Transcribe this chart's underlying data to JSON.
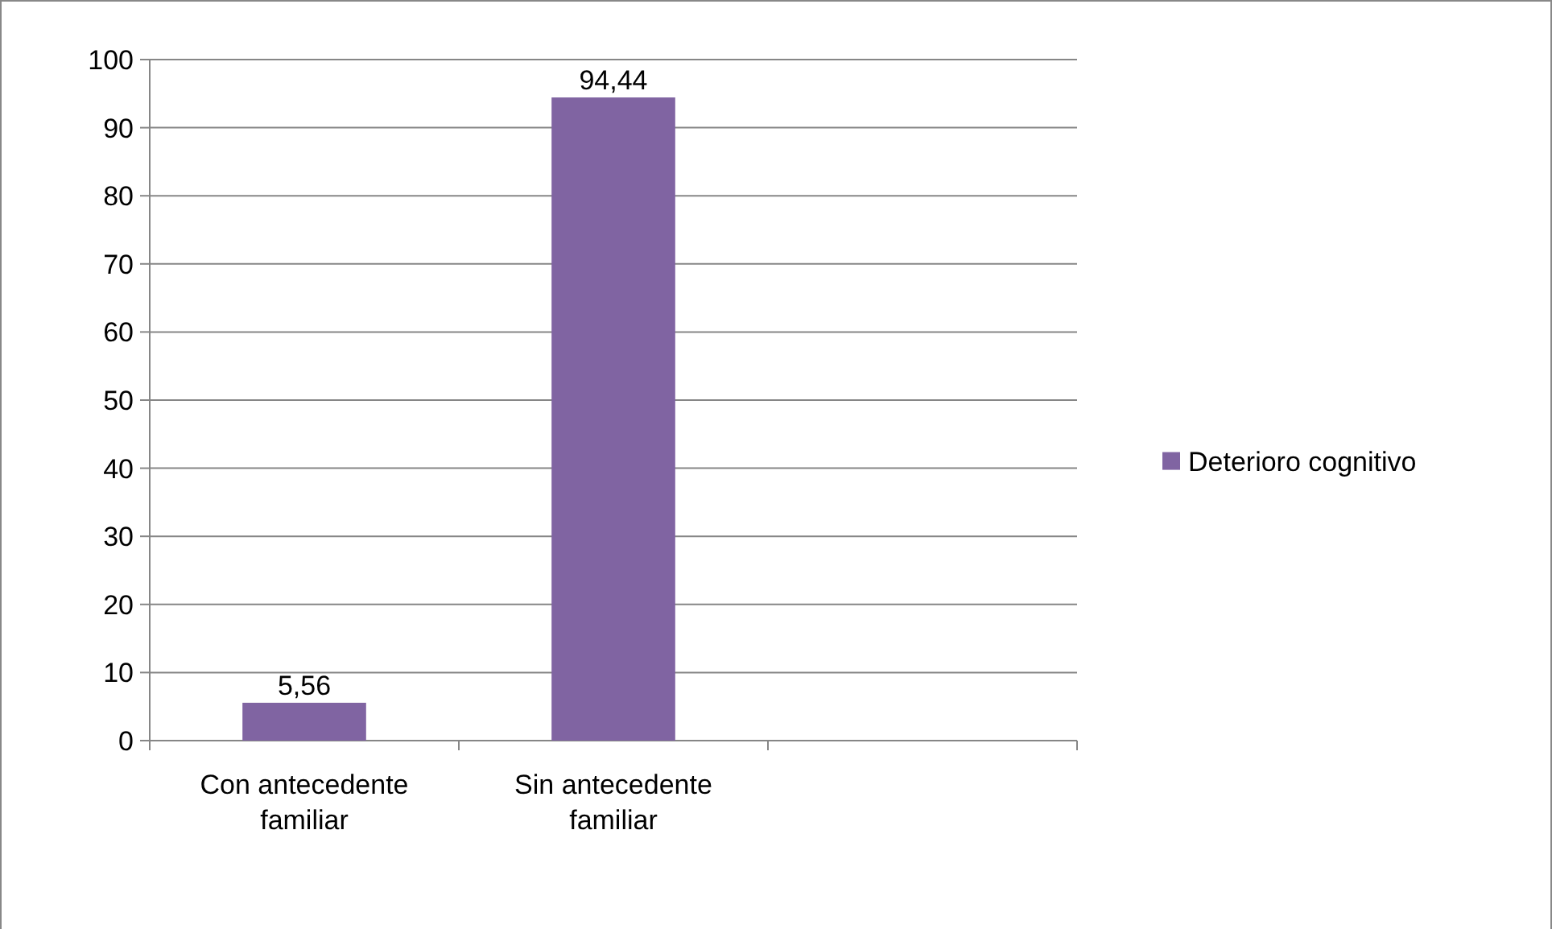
{
  "chart_data": {
    "type": "bar",
    "categories": [
      "Con antecedente familiar",
      "Sin antecedente familiar",
      null
    ],
    "series": [
      {
        "name": "Deterioro cognitivo",
        "color": "#8064a2",
        "values": [
          5.56,
          94.44,
          null
        ],
        "value_labels": [
          "5,56",
          "94,44",
          null
        ]
      }
    ],
    "ylim": [
      0,
      100
    ],
    "yticks": [
      0,
      10,
      20,
      30,
      40,
      50,
      60,
      70,
      80,
      90,
      100
    ],
    "grid": "y",
    "legend": "right"
  }
}
